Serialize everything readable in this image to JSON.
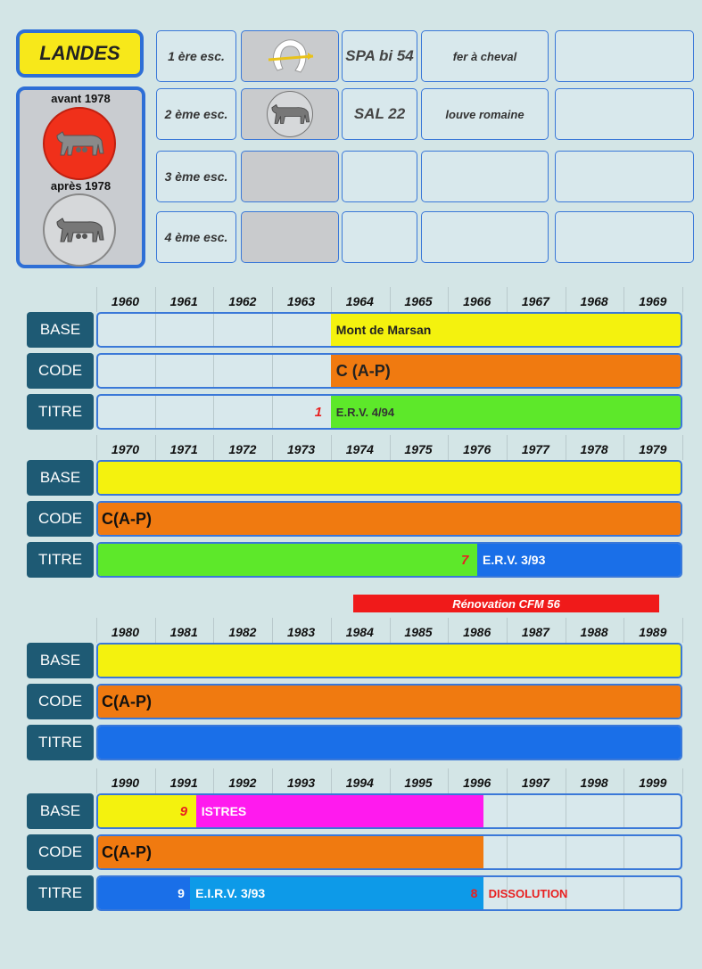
{
  "header": {
    "title": "LANDES",
    "badge_before_label": "avant 1978",
    "badge_after_label": "après 1978",
    "squadrons": [
      {
        "label": "1 ère esc.",
        "code": "SPA bi 54",
        "name": "fer à cheval",
        "insignia": "horseshoe-icon"
      },
      {
        "label": "2 ème esc.",
        "code": "SAL 22",
        "name": "louve romaine",
        "insignia": "wolf-icon"
      },
      {
        "label": "3 ème esc.",
        "code": "",
        "name": "",
        "insignia": ""
      },
      {
        "label": "4 ème esc.",
        "code": "",
        "name": "",
        "insignia": ""
      }
    ]
  },
  "row_labels": {
    "base": "BASE",
    "code": "CODE",
    "titre": "TITRE"
  },
  "colors": {
    "base": "#f4f20e",
    "code": "#f07a10",
    "erv": "#5de82a",
    "blue": "#1a6fe8",
    "light_blue": "#0d9ae8",
    "magenta": "#ff1aee",
    "alert": "#e82020"
  },
  "renovation_label": "Rénovation CFM 56",
  "decades": [
    {
      "years": [
        "1960",
        "1961",
        "1962",
        "1963",
        "1964",
        "1965",
        "1966",
        "1967",
        "1968",
        "1969"
      ],
      "rows": {
        "base": [
          {
            "start": 1964,
            "end": 1970,
            "color": "base",
            "label": "Mont de Marsan",
            "label_color": "#222",
            "size": 14
          }
        ],
        "code": [
          {
            "start": 1964,
            "end": 1970,
            "color": "code",
            "label": "C (A-P)",
            "label_color": "#222",
            "size": 18
          }
        ],
        "titre": [
          {
            "start": 1964,
            "end": 1970,
            "color": "erv",
            "label": "E.R.V. 4/94",
            "label_color": "#333",
            "size": 13,
            "marker": "1"
          }
        ]
      }
    },
    {
      "years": [
        "1970",
        "1971",
        "1972",
        "1973",
        "1974",
        "1975",
        "1976",
        "1977",
        "1978",
        "1979"
      ],
      "rows": {
        "base": [
          {
            "start": 1970,
            "end": 1980,
            "color": "base",
            "label": "",
            "size": 14
          }
        ],
        "code": [
          {
            "start": 1970,
            "end": 1980,
            "color": "code",
            "label": "C(A-P)",
            "label_color": "#111",
            "size": 18
          }
        ],
        "titre": [
          {
            "start": 1970,
            "end": 1976.5,
            "color": "erv",
            "label": "",
            "size": 13
          },
          {
            "start": 1976.5,
            "end": 1980,
            "color": "blue",
            "label": "E.R.V. 3/93",
            "label_color": "#fff",
            "size": 14,
            "marker": "7"
          }
        ]
      }
    },
    {
      "years": [
        "1980",
        "1981",
        "1982",
        "1983",
        "1984",
        "1985",
        "1986",
        "1987",
        "1988",
        "1989"
      ],
      "rows": {
        "base": [
          {
            "start": 1980,
            "end": 1990,
            "color": "base",
            "label": "",
            "size": 14
          }
        ],
        "code": [
          {
            "start": 1980,
            "end": 1990,
            "color": "code",
            "label": "C(A-P)",
            "label_color": "#111",
            "size": 18
          }
        ],
        "titre": [
          {
            "start": 1980,
            "end": 1990,
            "color": "blue",
            "label": "",
            "size": 14
          }
        ]
      }
    },
    {
      "years": [
        "1990",
        "1991",
        "1992",
        "1993",
        "1994",
        "1995",
        "1996",
        "1997",
        "1998",
        "1999"
      ],
      "rows": {
        "base": [
          {
            "start": 1990,
            "end": 1991.7,
            "color": "base",
            "label": "",
            "size": 14
          },
          {
            "start": 1991.7,
            "end": 1996.6,
            "color": "magenta",
            "label": "ISTRES",
            "label_color": "#fff",
            "size": 14,
            "marker": "9"
          }
        ],
        "code": [
          {
            "start": 1990,
            "end": 1996.6,
            "color": "code",
            "label": "C(A-P)",
            "label_color": "#111",
            "size": 18
          }
        ],
        "titre": [
          {
            "start": 1990,
            "end": 1991.6,
            "color": "blue",
            "label": "",
            "size": 14
          },
          {
            "start": 1991.6,
            "end": 1996.6,
            "color": "light_blue",
            "label": "E.I.R.V. 3/93",
            "label_color": "#fff",
            "size": 14,
            "marker": "9",
            "marker_color": "#fff"
          },
          {
            "start": 1996.6,
            "end": 2000,
            "color": "none",
            "label": "DISSOLUTION",
            "label_color": "#e82020",
            "size": 13,
            "marker": "8"
          }
        ]
      }
    }
  ]
}
